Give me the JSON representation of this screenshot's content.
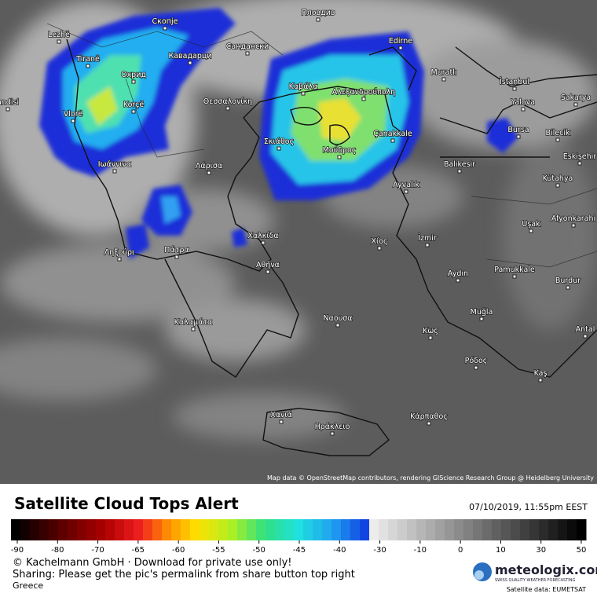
{
  "map": {
    "labels": [
      {
        "text": "Lezhë"
      },
      {
        "text": "Скопје"
      },
      {
        "text": "Пловдив"
      },
      {
        "text": "Tiranë"
      },
      {
        "text": "Кавадарци"
      },
      {
        "text": "Сандански"
      },
      {
        "text": "Edirne"
      },
      {
        "text": "Охрид"
      },
      {
        "text": "Muratlı"
      },
      {
        "text": "İstanbul"
      },
      {
        "text": "Καβάλα"
      },
      {
        "text": "Αλεξανδρούπολη"
      },
      {
        "text": "Yalova"
      },
      {
        "text": "Sakarya"
      },
      {
        "text": "Korçë"
      },
      {
        "text": "Θεσσαλονίκη"
      },
      {
        "text": "Vlorë"
      },
      {
        "text": "andisi"
      },
      {
        "text": "Çanakkale"
      },
      {
        "text": "Bursa"
      },
      {
        "text": "Bilecik"
      },
      {
        "text": "Σκιάθος"
      },
      {
        "text": "Μούδρος"
      },
      {
        "text": "Eskişehir"
      },
      {
        "text": "Ιωάννινα"
      },
      {
        "text": "Λάρισα"
      },
      {
        "text": "Balıkesir"
      },
      {
        "text": "Kütahya"
      },
      {
        "text": "Ayvalık"
      },
      {
        "text": "Χαλκίδα"
      },
      {
        "text": "Uşak"
      },
      {
        "text": "Afyonkarahi"
      },
      {
        "text": "İzmir"
      },
      {
        "text": "Χίος"
      },
      {
        "text": "Ληξούρι"
      },
      {
        "text": "Πάτρα"
      },
      {
        "text": "Αθήνα"
      },
      {
        "text": "Pamukkale"
      },
      {
        "text": "Aydın"
      },
      {
        "text": "Burdur"
      },
      {
        "text": "Ναουσα"
      },
      {
        "text": "Muğla"
      },
      {
        "text": "Καλαμάτα"
      },
      {
        "text": "Antal"
      },
      {
        "text": "Κως"
      },
      {
        "text": "Ρόδος"
      },
      {
        "text": "Kaş"
      },
      {
        "text": "Χανιά"
      },
      {
        "text": "Κάρπαθος"
      },
      {
        "text": "Ηράκλειο"
      }
    ],
    "attribution": "Map data © OpenStreetMap contributors, rendering GIScience Research Group @ Heidelberg University"
  },
  "legend": {
    "title": "Satellite Cloud Tops Alert",
    "timestamp": "07/10/2019, 11:55pm EEST",
    "ticks": [
      -90,
      -80,
      -70,
      -65,
      -60,
      -55,
      -50,
      -45,
      -40,
      -30,
      -10,
      0,
      10,
      30,
      50
    ]
  },
  "footer": {
    "copyright": "© Kachelmann GmbH · Download for private use only!",
    "sharing": "Sharing: Please get the pic's permalink from share button top right",
    "region": "Greece",
    "logo": "meteologix.com",
    "tagline": "SWISS QUALITY WEATHER FORECASTING",
    "source": "Satellite data: EUMETSAT"
  }
}
